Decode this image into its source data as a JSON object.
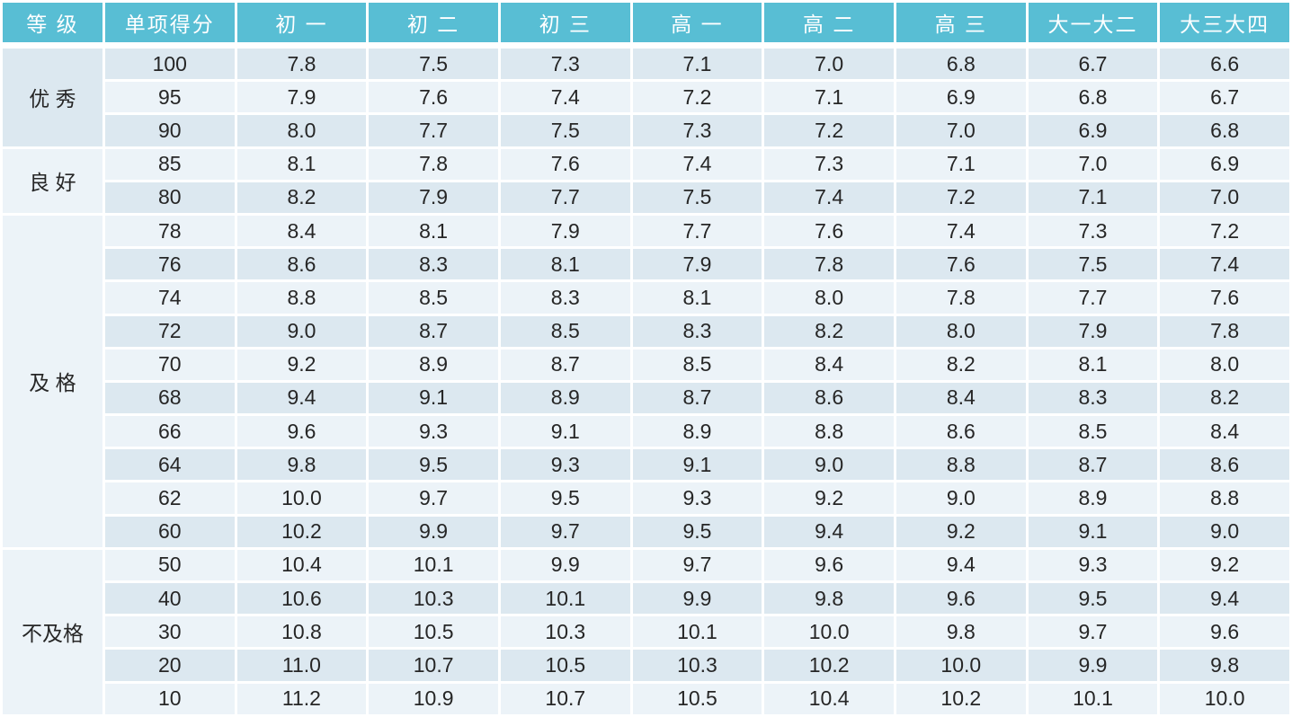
{
  "colors": {
    "header_bg": "#58bed4",
    "header_text": "#ffffff",
    "row_dark": "#dce8f0",
    "row_light": "#ecf3f8",
    "body_text": "#262626",
    "separator": "#ffffff"
  },
  "table": {
    "headers": [
      "等 级",
      "单项得分",
      "初 一",
      "初 二",
      "初 三",
      "高 一",
      "高 二",
      "高 三",
      "大一大二",
      "大三大四"
    ],
    "groups": [
      {
        "label": "优 秀",
        "rows": [
          {
            "score": "100",
            "values": [
              "7.8",
              "7.5",
              "7.3",
              "7.1",
              "7.0",
              "6.8",
              "6.7",
              "6.6"
            ]
          },
          {
            "score": "95",
            "values": [
              "7.9",
              "7.6",
              "7.4",
              "7.2",
              "7.1",
              "6.9",
              "6.8",
              "6.7"
            ]
          },
          {
            "score": "90",
            "values": [
              "8.0",
              "7.7",
              "7.5",
              "7.3",
              "7.2",
              "7.0",
              "6.9",
              "6.8"
            ]
          }
        ]
      },
      {
        "label": "良 好",
        "rows": [
          {
            "score": "85",
            "values": [
              "8.1",
              "7.8",
              "7.6",
              "7.4",
              "7.3",
              "7.1",
              "7.0",
              "6.9"
            ]
          },
          {
            "score": "80",
            "values": [
              "8.2",
              "7.9",
              "7.7",
              "7.5",
              "7.4",
              "7.2",
              "7.1",
              "7.0"
            ]
          }
        ]
      },
      {
        "label": "及 格",
        "rows": [
          {
            "score": "78",
            "values": [
              "8.4",
              "8.1",
              "7.9",
              "7.7",
              "7.6",
              "7.4",
              "7.3",
              "7.2"
            ]
          },
          {
            "score": "76",
            "values": [
              "8.6",
              "8.3",
              "8.1",
              "7.9",
              "7.8",
              "7.6",
              "7.5",
              "7.4"
            ]
          },
          {
            "score": "74",
            "values": [
              "8.8",
              "8.5",
              "8.3",
              "8.1",
              "8.0",
              "7.8",
              "7.7",
              "7.6"
            ]
          },
          {
            "score": "72",
            "values": [
              "9.0",
              "8.7",
              "8.5",
              "8.3",
              "8.2",
              "8.0",
              "7.9",
              "7.8"
            ]
          },
          {
            "score": "70",
            "values": [
              "9.2",
              "8.9",
              "8.7",
              "8.5",
              "8.4",
              "8.2",
              "8.1",
              "8.0"
            ]
          },
          {
            "score": "68",
            "values": [
              "9.4",
              "9.1",
              "8.9",
              "8.7",
              "8.6",
              "8.4",
              "8.3",
              "8.2"
            ]
          },
          {
            "score": "66",
            "values": [
              "9.6",
              "9.3",
              "9.1",
              "8.9",
              "8.8",
              "8.6",
              "8.5",
              "8.4"
            ]
          },
          {
            "score": "64",
            "values": [
              "9.8",
              "9.5",
              "9.3",
              "9.1",
              "9.0",
              "8.8",
              "8.7",
              "8.6"
            ]
          },
          {
            "score": "62",
            "values": [
              "10.0",
              "9.7",
              "9.5",
              "9.3",
              "9.2",
              "9.0",
              "8.9",
              "8.8"
            ]
          },
          {
            "score": "60",
            "values": [
              "10.2",
              "9.9",
              "9.7",
              "9.5",
              "9.4",
              "9.2",
              "9.1",
              "9.0"
            ]
          }
        ]
      },
      {
        "label": "不及格",
        "rows": [
          {
            "score": "50",
            "values": [
              "10.4",
              "10.1",
              "9.9",
              "9.7",
              "9.6",
              "9.4",
              "9.3",
              "9.2"
            ]
          },
          {
            "score": "40",
            "values": [
              "10.6",
              "10.3",
              "10.1",
              "9.9",
              "9.8",
              "9.6",
              "9.5",
              "9.4"
            ]
          },
          {
            "score": "30",
            "values": [
              "10.8",
              "10.5",
              "10.3",
              "10.1",
              "10.0",
              "9.8",
              "9.7",
              "9.6"
            ]
          },
          {
            "score": "20",
            "values": [
              "11.0",
              "10.7",
              "10.5",
              "10.3",
              "10.2",
              "10.0",
              "9.9",
              "9.8"
            ]
          },
          {
            "score": "10",
            "values": [
              "11.2",
              "10.9",
              "10.7",
              "10.5",
              "10.4",
              "10.2",
              "10.1",
              "10.0"
            ]
          }
        ]
      }
    ]
  }
}
